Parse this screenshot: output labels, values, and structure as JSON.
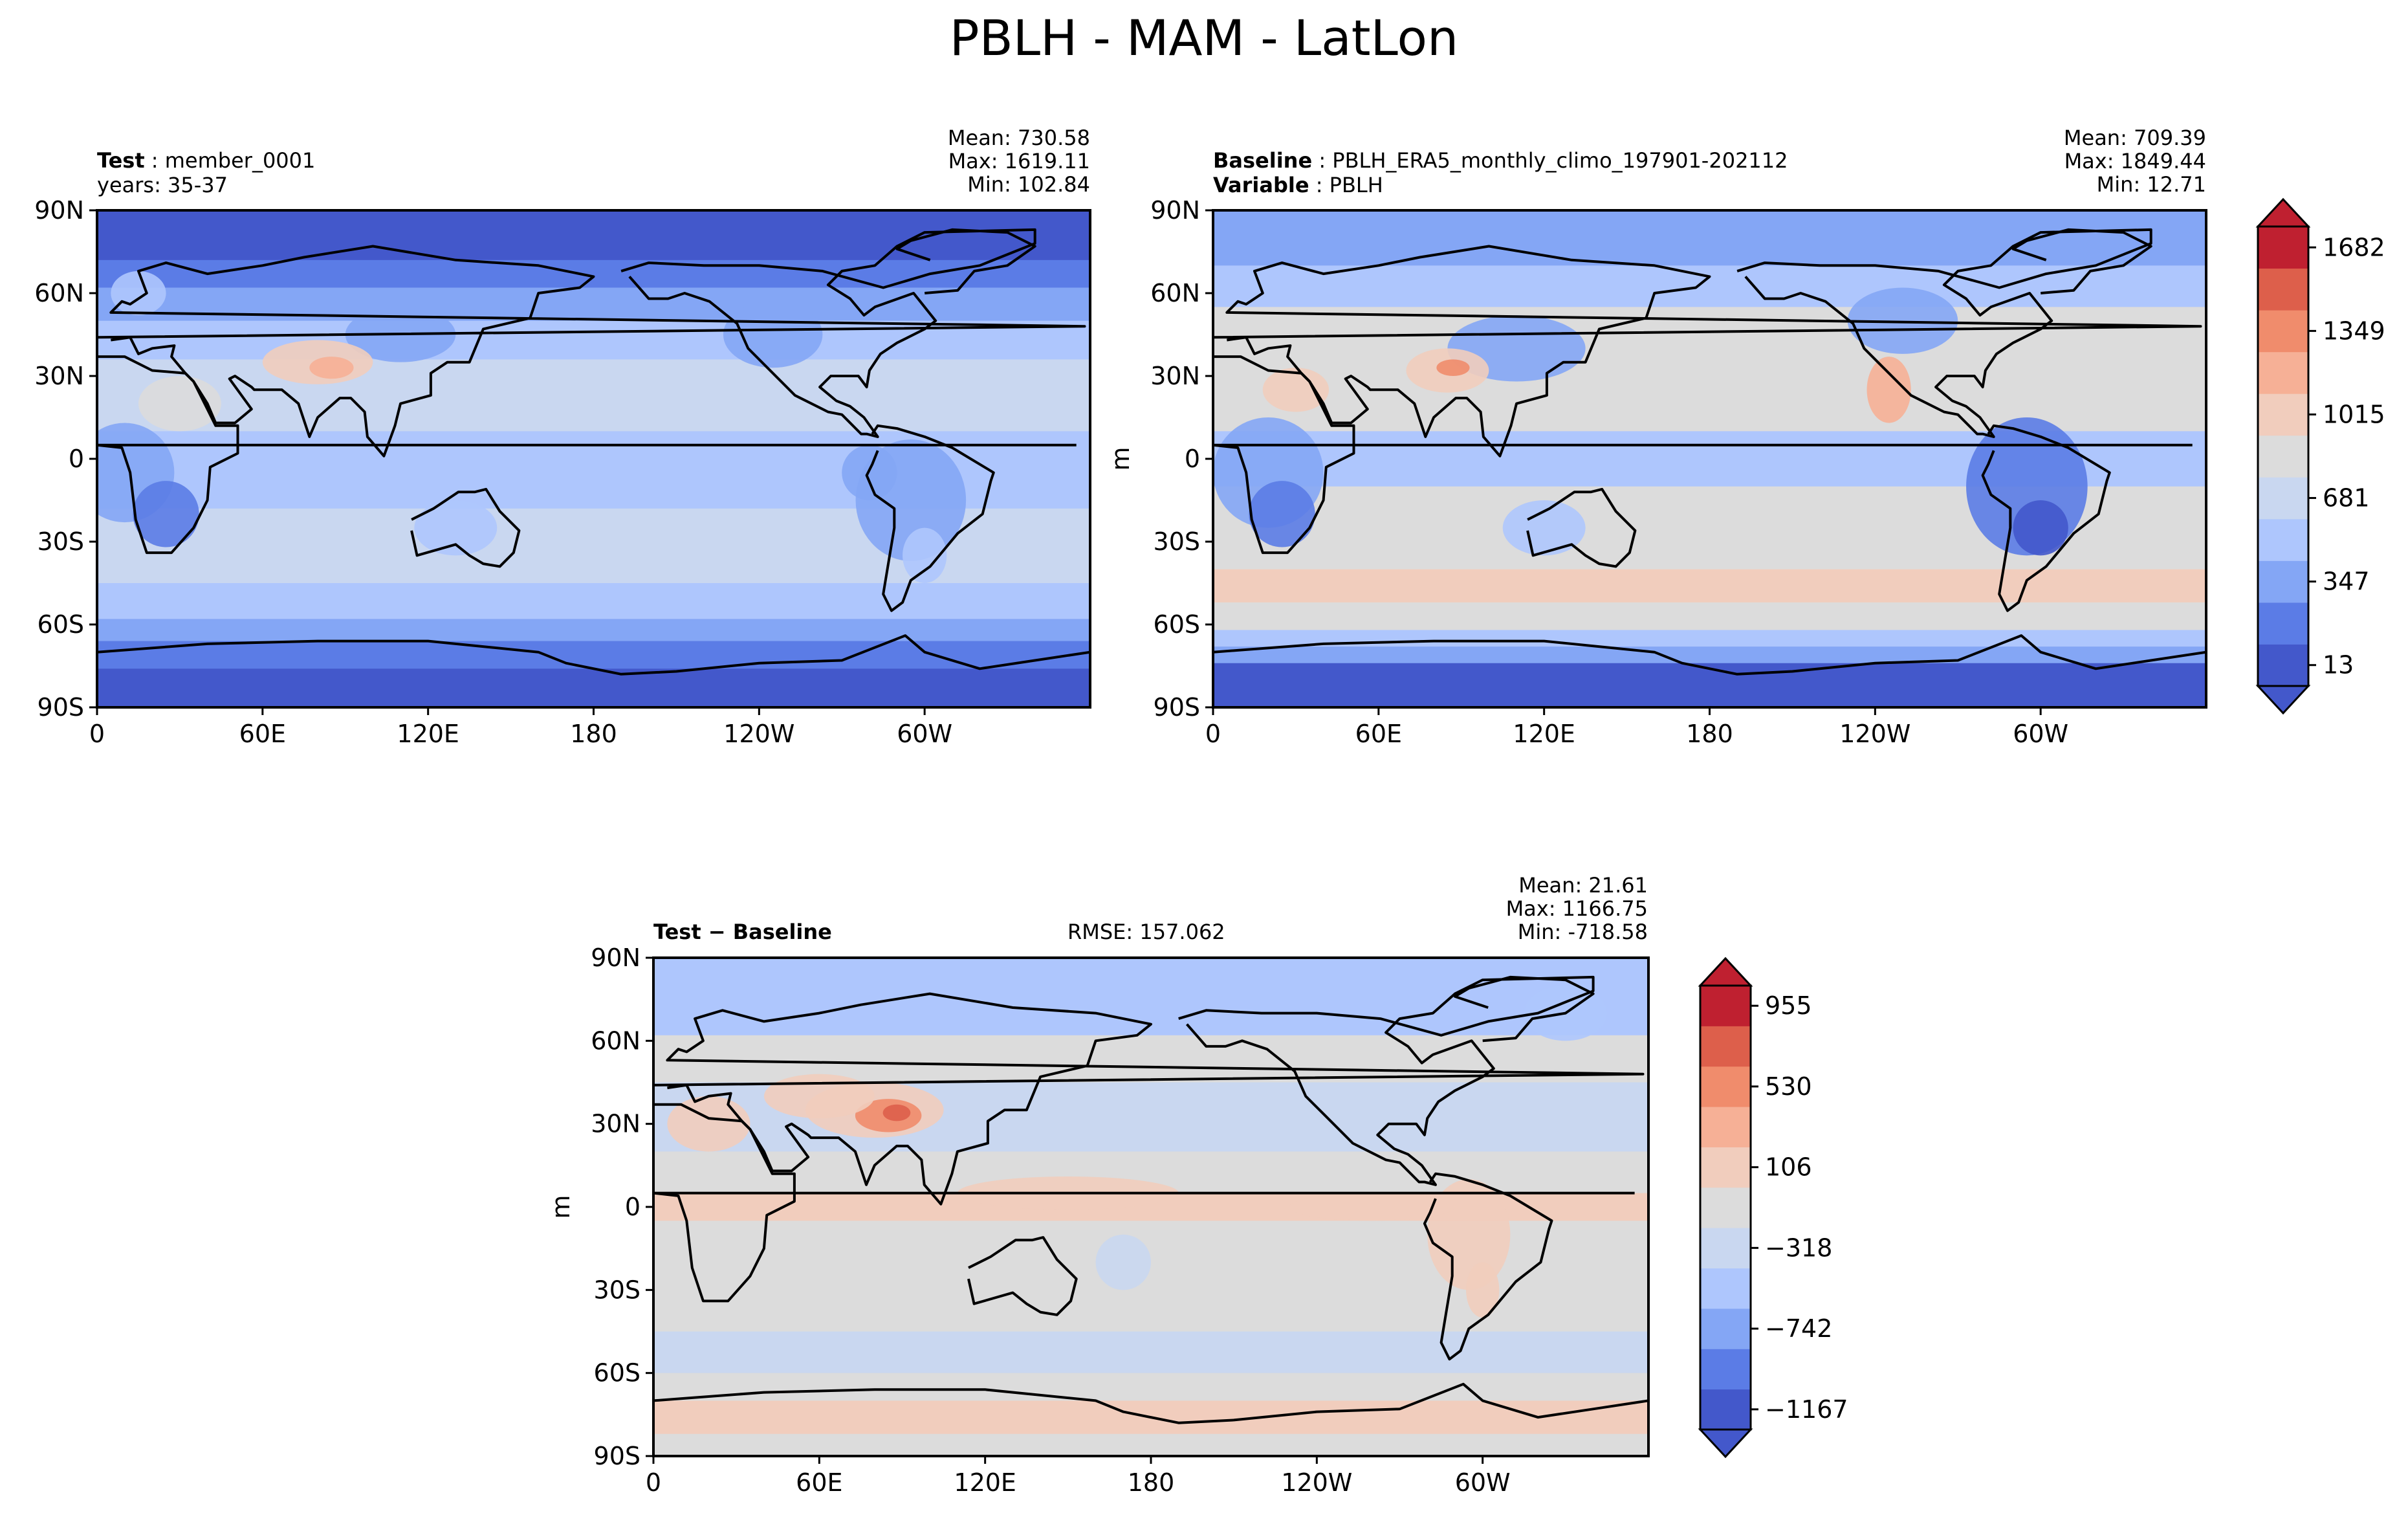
{
  "figure_title": "PBLH - MAM - LatLon",
  "colors": {
    "diverging": [
      "#4358cb",
      "#5b7ce6",
      "#84a6f5",
      "#aec6fd",
      "#c9d7f0",
      "#dcdcdc",
      "#f1cdbd",
      "#f6b096",
      "#f08c6c",
      "#dd5f4b",
      "#bf2030"
    ],
    "coastline": "#000000"
  },
  "chart_data": [
    {
      "type": "heatmap",
      "panel": "test",
      "title_left_label": "Test",
      "title_left_value": "member_0001",
      "subtitle": "years: 35-37",
      "stats": {
        "mean": "Mean: 730.58",
        "max": "Max: 1619.11",
        "min": "Min: 102.84"
      },
      "x_ticks": [
        "0",
        "60E",
        "120E",
        "180",
        "120W",
        "60W"
      ],
      "y_ticks": [
        "90N",
        "60N",
        "30N",
        "0",
        "30S",
        "60S",
        "90S"
      ],
      "xlim": [
        0,
        360
      ],
      "ylim": [
        -90,
        90
      ]
    },
    {
      "type": "heatmap",
      "panel": "baseline",
      "title_left_label": "Baseline",
      "title_left_value": "PBLH_ERA5_monthly_climo_197901-202112",
      "variable_label": "Variable",
      "variable_value": "PBLH",
      "ylabel": "m",
      "stats": {
        "mean": "Mean: 709.39",
        "max": "Max: 1849.44",
        "min": "Min: 12.71"
      },
      "x_ticks": [
        "0",
        "60E",
        "120E",
        "180",
        "120W",
        "60W"
      ],
      "y_ticks": [
        "90N",
        "60N",
        "30N",
        "0",
        "30S",
        "60S",
        "90S"
      ],
      "xlim": [
        0,
        360
      ],
      "ylim": [
        -90,
        90
      ],
      "colorbar": {
        "ticks": [
          "13",
          "347",
          "681",
          "1015",
          "1349",
          "1682"
        ],
        "range": [
          13,
          1849
        ],
        "extend": "both"
      }
    },
    {
      "type": "heatmap",
      "panel": "difference",
      "title_left_label": "Test − Baseline",
      "rmse": "RMSE: 157.062",
      "ylabel": "m",
      "stats": {
        "mean": "Mean: 21.61",
        "max": "Max: 1166.75",
        "min": "Min: -718.58"
      },
      "x_ticks": [
        "0",
        "60E",
        "120E",
        "180",
        "120W",
        "60W"
      ],
      "y_ticks": [
        "90N",
        "60N",
        "30N",
        "0",
        "30S",
        "60S",
        "90S"
      ],
      "xlim": [
        0,
        360
      ],
      "ylim": [
        -90,
        90
      ],
      "colorbar": {
        "ticks": [
          "−1167",
          "−742",
          "−318",
          "106",
          "530",
          "955"
        ],
        "range": [
          -1167,
          1167
        ],
        "extend": "both"
      }
    }
  ]
}
